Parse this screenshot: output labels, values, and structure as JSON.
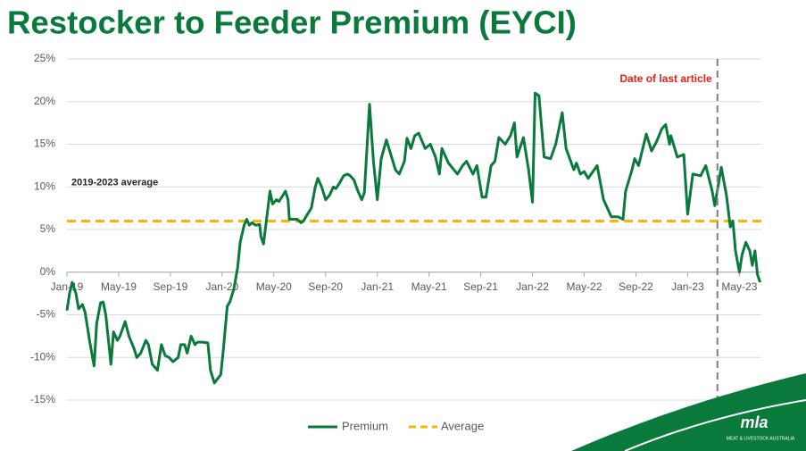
{
  "chart_data": {
    "type": "line",
    "title": "Restocker to Feeder Premium (EYCI)",
    "x": [
      0,
      0.2,
      0.4,
      0.7,
      0.9,
      1.2,
      1.4,
      1.8,
      2.1,
      2.3,
      2.6,
      2.8,
      3.0,
      3.4,
      3.6,
      3.9,
      4.1,
      4.5,
      4.8,
      5.2,
      5.4,
      5.7,
      6.1,
      6.3,
      6.6,
      7.0,
      7.3,
      7.6,
      7.9,
      8.2,
      8.6,
      8.8,
      9.1,
      9.3,
      9.6,
      9.9,
      10.1,
      10.5,
      10.9,
      11.1,
      11.4,
      11.9,
      12.1,
      12.4,
      12.6,
      12.9,
      13.2,
      13.4,
      13.7,
      13.9,
      14.1,
      14.3,
      14.6,
      14.9,
      15.0,
      15.2,
      15.7,
      15.9,
      16.2,
      16.4,
      16.7,
      16.9,
      17.1,
      17.2,
      17.5,
      17.8,
      18.1,
      18.3,
      18.6,
      18.9,
      19.2,
      19.4,
      19.7,
      20.0,
      20.3,
      20.6,
      20.8,
      21.1,
      21.4,
      21.7,
      21.9,
      22.2,
      22.5,
      22.8,
      23.0,
      23.4,
      23.7,
      24.0,
      24.3,
      24.7,
      25.4,
      25.7,
      26.1,
      26.3,
      26.6,
      26.9,
      27.2,
      27.7,
      28.1,
      28.5,
      28.8,
      29.0,
      29.5,
      30.2,
      30.6,
      30.9,
      31.4,
      31.7,
      32.1,
      32.4,
      32.8,
      33.1,
      33.4,
      33.9,
      34.3,
      34.6,
      34.8,
      35.3,
      35.7,
      36.0,
      36.2,
      36.5,
      36.9,
      37.4,
      37.8,
      38.3,
      38.6,
      39.2,
      39.4,
      39.7,
      40.0,
      40.3,
      41.0,
      41.5,
      42.1,
      42.6,
      43.0,
      43.2,
      43.7,
      43.9,
      44.2,
      44.8,
      45.2,
      45.6,
      46.0,
      46.3,
      46.6,
      46.7,
      47.2,
      47.7,
      48.0,
      48.4,
      49.0,
      49.4,
      49.9,
      50.1,
      50.6,
      51.0,
      51.3,
      51.5,
      51.7,
      52.0,
      52.2,
      52.5,
      52.8,
      53.0,
      53.2,
      53.4,
      53.6
    ],
    "series": [
      {
        "name": "Premium",
        "color": "#0a7a3c",
        "values": [
          -4.5,
          -2.5,
          -1.2,
          -2.5,
          -4.3,
          -3.8,
          -4.7,
          -8.5,
          -11,
          -6,
          -3.6,
          -3.5,
          -5,
          -10.8,
          -7,
          -8,
          -7.5,
          -5.8,
          -7.5,
          -9,
          -10,
          -9.5,
          -8,
          -8.5,
          -10.8,
          -11.5,
          -8.5,
          -9.8,
          -10,
          -10.5,
          -10,
          -8.5,
          -8.5,
          -9.5,
          -7.5,
          -8.5,
          -8.2,
          -8.2,
          -8.3,
          -11.5,
          -13,
          -12,
          -9,
          -4,
          -3.5,
          -2,
          0.5,
          3.5,
          5.5,
          6.2,
          5.5,
          5.8,
          5.5,
          5.6,
          4.2,
          3.3,
          9.5,
          8,
          8.5,
          8.3,
          9,
          9.5,
          8.5,
          6.2,
          6.2,
          6.2,
          5.8,
          6,
          6.8,
          7.5,
          10,
          11,
          10,
          8.5,
          9,
          10,
          9.8,
          10.5,
          11.3,
          11.5,
          11.3,
          10.8,
          9.5,
          8.5,
          9.3,
          19.7,
          13,
          8.5,
          13.3,
          15.5,
          12,
          11.5,
          13,
          15.7,
          14.5,
          16,
          16.3,
          14.5,
          15,
          13.5,
          11.5,
          14.5,
          12.8,
          11.5,
          12.5,
          13,
          11.5,
          12.5,
          8.8,
          8.8,
          12.5,
          13,
          15.8,
          15,
          16,
          17.5,
          13.5,
          15.8,
          12,
          8.2,
          21,
          20.7,
          13.5,
          13.3,
          15,
          18.7,
          14.5,
          12,
          12.8,
          11.5,
          11.8,
          11,
          12.5,
          8.5,
          6.5,
          6.5,
          6.2,
          9.5,
          12,
          13.3,
          12.5,
          16.2,
          14.2,
          15.3,
          16.8,
          17.3,
          15,
          16,
          13.5,
          13.8,
          6.8,
          11.5,
          11.3,
          12.5,
          9.5,
          7.8,
          12.3,
          9,
          5.3,
          6,
          2.5,
          0,
          2,
          3.5,
          2.5,
          0.8,
          2.5,
          -0.3,
          -1.2
        ]
      }
    ],
    "reference_lines": [
      {
        "name": "Average",
        "color": "#f5b800",
        "value": 6,
        "label": "2019-2023 average"
      }
    ],
    "annotation": {
      "text": "Date of last article",
      "x": 50.3,
      "color": "#e32219"
    },
    "xlim": [
      0,
      53.7
    ],
    "xticks": [
      {
        "value": 0,
        "label": "Jan-19"
      },
      {
        "value": 4,
        "label": "May-19"
      },
      {
        "value": 8,
        "label": "Sep-19"
      },
      {
        "value": 12,
        "label": "Jan-20"
      },
      {
        "value": 16,
        "label": "May-20"
      },
      {
        "value": 20,
        "label": "Sep-20"
      },
      {
        "value": 24,
        "label": "Jan-21"
      },
      {
        "value": 28,
        "label": "May-21"
      },
      {
        "value": 32,
        "label": "Sep-21"
      },
      {
        "value": 36,
        "label": "Jan-22"
      },
      {
        "value": 40,
        "label": "May-22"
      },
      {
        "value": 44,
        "label": "Sep-22"
      },
      {
        "value": 48,
        "label": "Jan-23"
      },
      {
        "value": 52,
        "label": "May-23"
      }
    ],
    "ylim": [
      -15,
      25
    ],
    "yticks": [
      {
        "value": -15,
        "label": "-15%"
      },
      {
        "value": -10,
        "label": "-10%"
      },
      {
        "value": -5,
        "label": "-5%"
      },
      {
        "value": 0,
        "label": "0%"
      },
      {
        "value": 5,
        "label": "5%"
      },
      {
        "value": 10,
        "label": "10%"
      },
      {
        "value": 15,
        "label": "15%"
      },
      {
        "value": 20,
        "label": "20%"
      },
      {
        "value": 25,
        "label": "25%"
      }
    ],
    "grid": true,
    "legend": "bottom",
    "logo": {
      "text": "mla",
      "subtitle": "MEAT & LIVESTOCK AUSTRALIA"
    }
  }
}
